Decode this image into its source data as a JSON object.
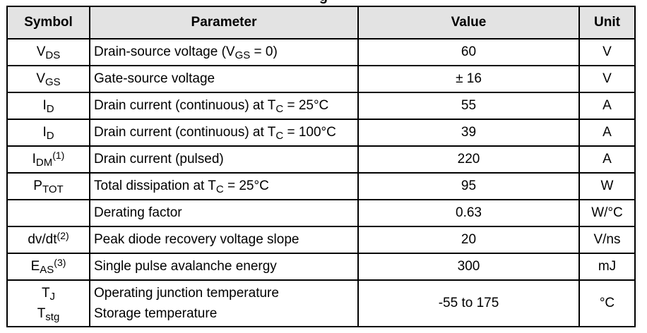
{
  "caption_fragment": "g",
  "headers": {
    "symbol": "Symbol",
    "parameter": "Parameter",
    "value": "Value",
    "unit": "Unit"
  },
  "rows": [
    {
      "sym": "V",
      "sym_sub": "DS",
      "param_a": "Drain-source voltage (V",
      "param_sub": "GS",
      "param_b": " = 0)",
      "value": "60",
      "unit": "V"
    },
    {
      "sym": "V",
      "sym_sub": "GS",
      "param": "Gate-source voltage",
      "value": "± 16",
      "unit": "V"
    },
    {
      "sym": "I",
      "sym_sub": "D",
      "param_a": "Drain current (continuous) at T",
      "param_sub": "C",
      "param_b": " = 25°C",
      "value": "55",
      "unit": "A"
    },
    {
      "sym": "I",
      "sym_sub": "D",
      "param_a": "Drain current (continuous) at T",
      "param_sub": "C",
      "param_b": " = 100°C",
      "value": "39",
      "unit": "A"
    },
    {
      "sym": "I",
      "sym_sub": "DM",
      "sym_sup": "(1)",
      "param": "Drain current (pulsed)",
      "value": "220",
      "unit": "A"
    },
    {
      "sym": "P",
      "sym_sub": "TOT",
      "param_a": "Total dissipation at T",
      "param_sub": "C",
      "param_b": " = 25°C",
      "value": "95",
      "unit": "W"
    },
    {
      "param": "Derating factor",
      "value": "0.63",
      "unit": "W/°C"
    },
    {
      "sym": "dv/dt",
      "sym_sup": "(2)",
      "param": "Peak diode recovery voltage slope",
      "value": "20",
      "unit": "V/ns"
    },
    {
      "sym": "E",
      "sym_sub": "AS",
      "sym_sup": "(3)",
      "param": "Single pulse avalanche energy",
      "value": "300",
      "unit": "mJ"
    },
    {
      "sym1": "T",
      "sym1_sub": "J",
      "sym2": "T",
      "sym2_sub": "stg",
      "param1": "Operating junction temperature",
      "param2": "Storage temperature",
      "value": "-55 to 175",
      "unit": "°C"
    }
  ]
}
